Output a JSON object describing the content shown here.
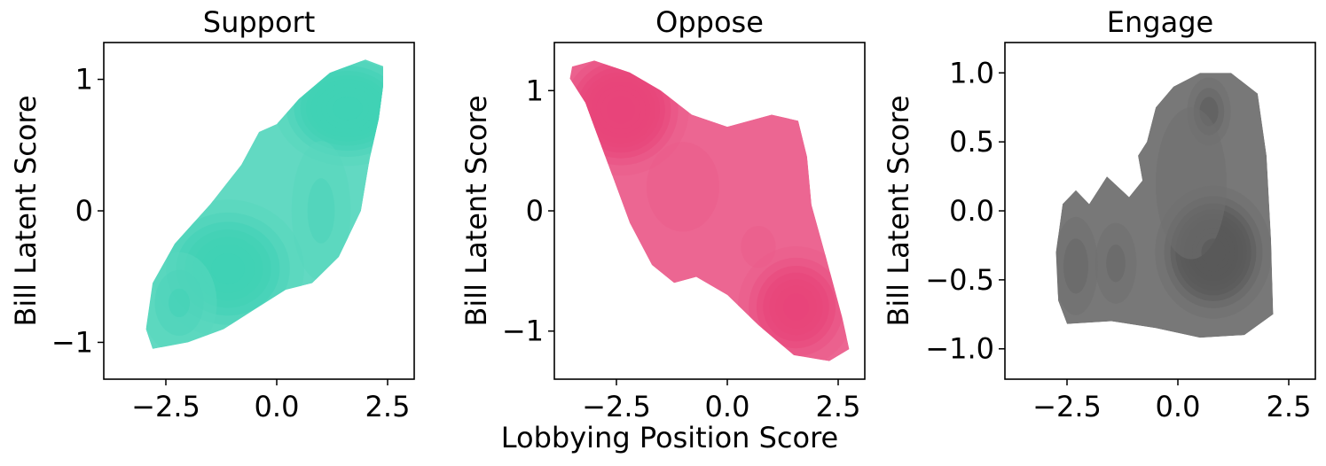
{
  "chart_data": [
    {
      "type": "kde-contour",
      "title": "Support",
      "xlabel": "",
      "ylabel": "Bill Latent Score",
      "xlim": [
        -3.9,
        3.1
      ],
      "ylim": [
        -1.28,
        1.28
      ],
      "xticks": [
        -2.5,
        0.0,
        2.5
      ],
      "xtick_labels": [
        "−2.5",
        "0.0",
        "2.5"
      ],
      "yticks": [
        -1,
        0,
        1
      ],
      "ytick_labels": [
        "−1",
        "0",
        "1"
      ],
      "color": "#3fd1b5",
      "levels": 10,
      "outline": [
        [
          -2.8,
          -1.05
        ],
        [
          -2.0,
          -1.0
        ],
        [
          -1.2,
          -0.9
        ],
        [
          -0.5,
          -0.75
        ],
        [
          0.2,
          -0.6
        ],
        [
          0.8,
          -0.55
        ],
        [
          1.4,
          -0.35
        ],
        [
          1.9,
          0.0
        ],
        [
          2.1,
          0.4
        ],
        [
          2.3,
          0.7
        ],
        [
          2.4,
          0.95
        ],
        [
          2.4,
          1.1
        ],
        [
          2.0,
          1.15
        ],
        [
          1.2,
          1.05
        ],
        [
          0.5,
          0.85
        ],
        [
          0.0,
          0.66
        ],
        [
          -0.4,
          0.6
        ],
        [
          -0.8,
          0.35
        ],
        [
          -1.5,
          0.05
        ],
        [
          -2.3,
          -0.25
        ],
        [
          -2.8,
          -0.55
        ],
        [
          -2.95,
          -0.9
        ]
      ],
      "peaks": [
        {
          "x": 1.6,
          "y": 0.78,
          "sx": 0.75,
          "sy": 0.2,
          "w": 1.0
        },
        {
          "x": -1.1,
          "y": -0.44,
          "sx": 0.85,
          "sy": 0.26,
          "w": 0.7
        },
        {
          "x": 1.0,
          "y": 0.0,
          "sx": 0.5,
          "sy": 0.4,
          "w": 0.22
        },
        {
          "x": -2.2,
          "y": -0.7,
          "sx": 0.55,
          "sy": 0.25,
          "w": 0.3
        }
      ]
    },
    {
      "type": "kde-contour",
      "title": "Oppose",
      "xlabel": "Lobbying Position Score",
      "ylabel": "Bill Latent Score",
      "xlim": [
        -3.9,
        3.1
      ],
      "ylim": [
        -1.4,
        1.4
      ],
      "xticks": [
        -2.5,
        0.0,
        2.5
      ],
      "xtick_labels": [
        "−2.5",
        "0.0",
        "2.5"
      ],
      "yticks": [
        -1,
        0,
        1
      ],
      "ytick_labels": [
        "−1",
        "0",
        "1"
      ],
      "color": "#e8457a",
      "levels": 10,
      "outline": [
        [
          -3.5,
          1.2
        ],
        [
          -3.0,
          1.25
        ],
        [
          -2.2,
          1.15
        ],
        [
          -1.5,
          1.0
        ],
        [
          -0.8,
          0.8
        ],
        [
          0.0,
          0.7
        ],
        [
          1.0,
          0.8
        ],
        [
          1.6,
          0.75
        ],
        [
          1.8,
          0.45
        ],
        [
          1.9,
          0.05
        ],
        [
          2.2,
          -0.35
        ],
        [
          2.6,
          -0.9
        ],
        [
          2.75,
          -1.15
        ],
        [
          2.3,
          -1.25
        ],
        [
          1.5,
          -1.2
        ],
        [
          0.7,
          -0.95
        ],
        [
          0.0,
          -0.7
        ],
        [
          -0.7,
          -0.55
        ],
        [
          -1.2,
          -0.6
        ],
        [
          -1.7,
          -0.45
        ],
        [
          -2.2,
          -0.1
        ],
        [
          -2.7,
          0.4
        ],
        [
          -3.2,
          0.9
        ],
        [
          -3.55,
          1.1
        ]
      ],
      "peaks": [
        {
          "x": -2.4,
          "y": 0.84,
          "sx": 0.7,
          "sy": 0.25,
          "w": 1.0
        },
        {
          "x": 1.55,
          "y": -0.8,
          "sx": 0.65,
          "sy": 0.25,
          "w": 0.7
        },
        {
          "x": -1.0,
          "y": 0.2,
          "sx": 1.1,
          "sy": 0.5,
          "w": 0.12
        },
        {
          "x": 0.7,
          "y": -0.3,
          "sx": 0.9,
          "sy": 0.4,
          "w": 0.1
        }
      ]
    },
    {
      "type": "kde-contour",
      "title": "Engage",
      "xlabel": "",
      "ylabel": "Bill Latent Score",
      "xlim": [
        -3.9,
        3.1
      ],
      "ylim": [
        -1.22,
        1.22
      ],
      "xticks": [
        -2.5,
        0.0,
        2.5
      ],
      "xtick_labels": [
        "−2.5",
        "0.0",
        "2.5"
      ],
      "yticks": [
        -1.0,
        -0.5,
        0.0,
        0.5,
        1.0
      ],
      "ytick_labels": [
        "−1.0",
        "−0.5",
        "0.0",
        "0.5",
        "1.0"
      ],
      "color": "#5a5a5a",
      "levels": 10,
      "outline": [
        [
          -2.5,
          -0.82
        ],
        [
          -1.5,
          -0.8
        ],
        [
          -0.5,
          -0.85
        ],
        [
          0.5,
          -0.92
        ],
        [
          1.5,
          -0.9
        ],
        [
          2.15,
          -0.75
        ],
        [
          2.1,
          -0.2
        ],
        [
          2.0,
          0.4
        ],
        [
          1.8,
          0.85
        ],
        [
          1.2,
          1.0
        ],
        [
          0.5,
          1.0
        ],
        [
          -0.1,
          0.9
        ],
        [
          -0.5,
          0.75
        ],
        [
          -0.7,
          0.5
        ],
        [
          -0.9,
          0.4
        ],
        [
          -0.8,
          0.22
        ],
        [
          -1.1,
          0.1
        ],
        [
          -1.6,
          0.25
        ],
        [
          -2.0,
          0.05
        ],
        [
          -2.3,
          0.15
        ],
        [
          -2.6,
          0.05
        ],
        [
          -2.75,
          -0.3
        ],
        [
          -2.7,
          -0.65
        ]
      ],
      "peaks": [
        {
          "x": 0.8,
          "y": -0.3,
          "sx": 0.6,
          "sy": 0.22,
          "w": 1.0
        },
        {
          "x": 0.7,
          "y": 0.72,
          "sx": 0.3,
          "sy": 0.15,
          "w": 0.35
        },
        {
          "x": -2.3,
          "y": -0.4,
          "sx": 0.35,
          "sy": 0.25,
          "w": 0.25
        },
        {
          "x": -1.4,
          "y": -0.38,
          "sx": 0.35,
          "sy": 0.22,
          "w": 0.22
        },
        {
          "x": 0.3,
          "y": 0.2,
          "sx": 0.8,
          "sy": 0.55,
          "w": 0.15
        }
      ]
    }
  ]
}
